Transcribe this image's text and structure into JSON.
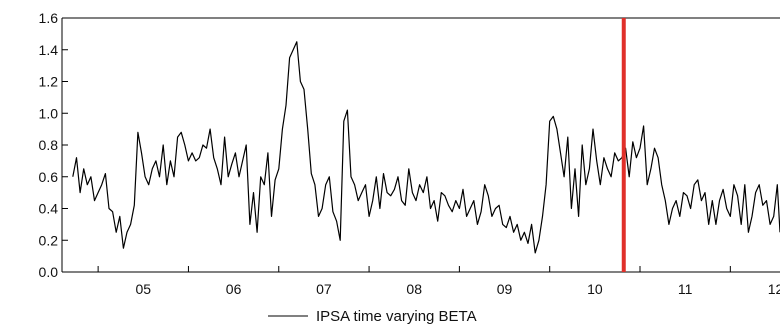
{
  "chart_data": {
    "type": "line",
    "title": "",
    "xlabel": "",
    "ylabel": "",
    "ylim": [
      0.0,
      1.6
    ],
    "xlim": [
      2004.6,
      2012.55
    ],
    "yticks": [
      "0.0",
      "0.2",
      "0.4",
      "0.6",
      "0.8",
      "1.0",
      "1.2",
      "1.4",
      "1.6"
    ],
    "xticks": [
      {
        "label": "05",
        "x": 2005.5
      },
      {
        "label": "06",
        "x": 2006.5
      },
      {
        "label": "07",
        "x": 2007.5
      },
      {
        "label": "08",
        "x": 2008.5
      },
      {
        "label": "09",
        "x": 2009.5
      },
      {
        "label": "10",
        "x": 2010.5
      },
      {
        "label": "11",
        "x": 2011.5
      },
      {
        "label": "12",
        "x": 2012.5
      }
    ],
    "grid": false,
    "legend_position": "bottom-center",
    "vertical_line": {
      "x": 2010.82,
      "color": "#e0302a"
    },
    "series": [
      {
        "name": "IPSA time varying BETA",
        "color": "#000000",
        "x": [
          2004.72,
          2004.76,
          2004.8,
          2004.84,
          2004.88,
          2004.92,
          2004.96,
          2005.0,
          2005.04,
          2005.08,
          2005.12,
          2005.16,
          2005.2,
          2005.24,
          2005.28,
          2005.32,
          2005.36,
          2005.4,
          2005.44,
          2005.48,
          2005.52,
          2005.56,
          2005.6,
          2005.64,
          2005.68,
          2005.72,
          2005.76,
          2005.8,
          2005.84,
          2005.88,
          2005.92,
          2005.96,
          2006.0,
          2006.04,
          2006.08,
          2006.12,
          2006.16,
          2006.2,
          2006.24,
          2006.28,
          2006.32,
          2006.36,
          2006.4,
          2006.44,
          2006.48,
          2006.52,
          2006.56,
          2006.6,
          2006.64,
          2006.68,
          2006.72,
          2006.76,
          2006.8,
          2006.84,
          2006.88,
          2006.92,
          2006.96,
          2007.0,
          2007.04,
          2007.08,
          2007.12,
          2007.16,
          2007.2,
          2007.24,
          2007.28,
          2007.32,
          2007.36,
          2007.4,
          2007.44,
          2007.48,
          2007.52,
          2007.56,
          2007.6,
          2007.64,
          2007.68,
          2007.72,
          2007.76,
          2007.8,
          2007.84,
          2007.88,
          2007.92,
          2007.96,
          2008.0,
          2008.04,
          2008.08,
          2008.12,
          2008.16,
          2008.2,
          2008.24,
          2008.28,
          2008.32,
          2008.36,
          2008.4,
          2008.44,
          2008.48,
          2008.52,
          2008.56,
          2008.6,
          2008.64,
          2008.68,
          2008.72,
          2008.76,
          2008.8,
          2008.84,
          2008.88,
          2008.92,
          2008.96,
          2009.0,
          2009.04,
          2009.08,
          2009.12,
          2009.16,
          2009.2,
          2009.24,
          2009.28,
          2009.32,
          2009.36,
          2009.4,
          2009.44,
          2009.48,
          2009.52,
          2009.56,
          2009.6,
          2009.64,
          2009.68,
          2009.72,
          2009.76,
          2009.8,
          2009.84,
          2009.88,
          2009.92,
          2009.96,
          2010.0,
          2010.04,
          2010.08,
          2010.12,
          2010.16,
          2010.2,
          2010.24,
          2010.28,
          2010.32,
          2010.36,
          2010.4,
          2010.44,
          2010.48,
          2010.52,
          2010.56,
          2010.6,
          2010.64,
          2010.68,
          2010.72,
          2010.76,
          2010.8,
          2010.84,
          2010.88,
          2010.92,
          2010.96,
          2011.0,
          2011.04,
          2011.08,
          2011.12,
          2011.16,
          2011.2,
          2011.24,
          2011.28,
          2011.32,
          2011.36,
          2011.4,
          2011.44,
          2011.48,
          2011.52,
          2011.56,
          2011.6,
          2011.64,
          2011.68,
          2011.72,
          2011.76,
          2011.8,
          2011.84,
          2011.88,
          2011.92,
          2011.96,
          2012.0,
          2012.04,
          2012.08,
          2012.12,
          2012.16,
          2012.2,
          2012.24,
          2012.28,
          2012.32,
          2012.36,
          2012.4,
          2012.44,
          2012.48,
          2012.52,
          2012.55
        ],
        "values": [
          0.6,
          0.72,
          0.5,
          0.65,
          0.55,
          0.6,
          0.45,
          0.5,
          0.55,
          0.62,
          0.4,
          0.38,
          0.25,
          0.35,
          0.15,
          0.25,
          0.3,
          0.42,
          0.88,
          0.75,
          0.6,
          0.55,
          0.65,
          0.7,
          0.6,
          0.8,
          0.55,
          0.7,
          0.6,
          0.85,
          0.88,
          0.8,
          0.7,
          0.75,
          0.7,
          0.72,
          0.8,
          0.78,
          0.9,
          0.72,
          0.65,
          0.55,
          0.85,
          0.6,
          0.68,
          0.75,
          0.6,
          0.7,
          0.8,
          0.3,
          0.5,
          0.25,
          0.6,
          0.55,
          0.75,
          0.35,
          0.58,
          0.65,
          0.9,
          1.05,
          1.35,
          1.4,
          1.45,
          1.2,
          1.15,
          0.9,
          0.62,
          0.55,
          0.35,
          0.4,
          0.55,
          0.6,
          0.38,
          0.32,
          0.2,
          0.95,
          1.02,
          0.6,
          0.55,
          0.45,
          0.5,
          0.55,
          0.35,
          0.45,
          0.6,
          0.4,
          0.62,
          0.5,
          0.48,
          0.52,
          0.6,
          0.45,
          0.42,
          0.65,
          0.5,
          0.45,
          0.55,
          0.5,
          0.6,
          0.4,
          0.45,
          0.32,
          0.5,
          0.48,
          0.42,
          0.38,
          0.45,
          0.4,
          0.52,
          0.35,
          0.4,
          0.45,
          0.3,
          0.38,
          0.55,
          0.48,
          0.35,
          0.4,
          0.42,
          0.3,
          0.28,
          0.35,
          0.25,
          0.3,
          0.2,
          0.25,
          0.18,
          0.3,
          0.12,
          0.2,
          0.35,
          0.55,
          0.95,
          0.98,
          0.9,
          0.75,
          0.6,
          0.85,
          0.4,
          0.65,
          0.35,
          0.8,
          0.55,
          0.65,
          0.9,
          0.7,
          0.55,
          0.72,
          0.65,
          0.6,
          0.75,
          0.7,
          0.72,
          0.78,
          0.6,
          0.82,
          0.72,
          0.78,
          0.92,
          0.55,
          0.65,
          0.78,
          0.72,
          0.55,
          0.45,
          0.3,
          0.4,
          0.45,
          0.35,
          0.5,
          0.48,
          0.4,
          0.55,
          0.58,
          0.45,
          0.5,
          0.3,
          0.45,
          0.3,
          0.45,
          0.52,
          0.4,
          0.35,
          0.55,
          0.48,
          0.3,
          0.55,
          0.25,
          0.35,
          0.5,
          0.55,
          0.42,
          0.45,
          0.3,
          0.35,
          0.55,
          0.25
        ]
      }
    ]
  }
}
